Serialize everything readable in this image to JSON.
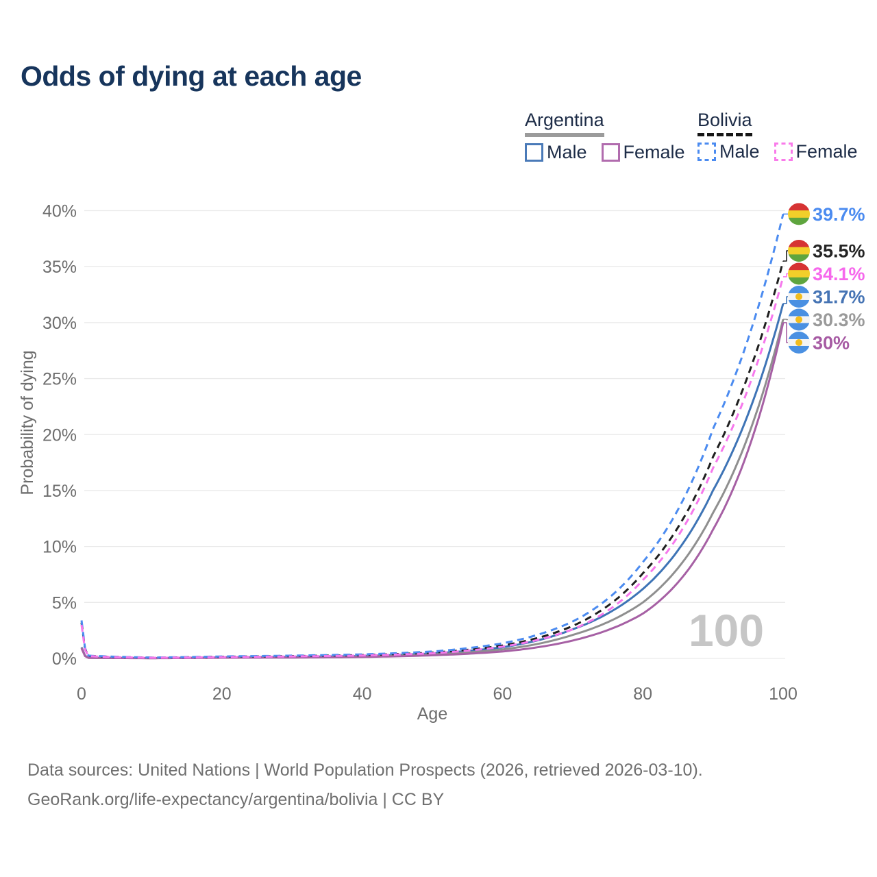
{
  "page": {
    "title": "Odds of dying at each age"
  },
  "legend": {
    "groups": [
      {
        "country": "Argentina",
        "line_style": "solid",
        "underline_color": "#9b9b9b",
        "items": [
          {
            "label": "Male",
            "color": "#4a7ab8"
          },
          {
            "label": "Female",
            "color": "#b16cae"
          }
        ]
      },
      {
        "country": "Bolivia",
        "line_style": "dashed",
        "underline_color": "#161616",
        "items": [
          {
            "label": "Male",
            "color": "#4b8bf0"
          },
          {
            "label": "Female",
            "color": "#f97bea"
          }
        ]
      }
    ]
  },
  "footer": {
    "line1": "Data sources: United Nations | World Population Prospects (2026, retrieved 2026-03-10).",
    "line2": "GeoRank.org/life-expectancy/argentina/bolivia | CC BY"
  },
  "chart_data": {
    "type": "line",
    "title": "Odds of dying at each age",
    "xlabel": "Age",
    "ylabel": "Probability of dying",
    "xlim": [
      0,
      100
    ],
    "ylim": [
      0,
      40
    ],
    "grid": "horizontal-only",
    "x_tick_values": [
      0,
      20,
      40,
      60,
      80,
      100
    ],
    "x_tick_labels": [
      "0",
      "20",
      "40",
      "60",
      "80",
      "100"
    ],
    "y_tick_values": [
      0,
      5,
      10,
      15,
      20,
      25,
      30,
      35,
      40
    ],
    "y_tick_labels": [
      "0%",
      "5%",
      "10%",
      "15%",
      "20%",
      "25%",
      "30%",
      "35%",
      "40%"
    ],
    "watermark_age": "100",
    "anchor_ages": [
      0,
      1,
      10,
      20,
      30,
      40,
      50,
      60,
      70,
      80,
      90,
      100
    ],
    "series": [
      {
        "id": "argentina-male",
        "country": "Argentina",
        "sex": "Male",
        "color": "#3e74b6",
        "dashed": false,
        "flag": "argentina",
        "end_label": "31.7%",
        "label_color": "#4674b4",
        "values_pct": [
          1.0,
          0.06,
          0.03,
          0.1,
          0.14,
          0.22,
          0.45,
          1.0,
          2.6,
          6.2,
          15,
          31.7
        ]
      },
      {
        "id": "argentina-both",
        "country": "Argentina",
        "sex": "Both sexes",
        "color": "#8f8f8f",
        "dashed": false,
        "flag": "argentina",
        "end_label": "30.3%",
        "label_color": "#9a9a9a",
        "values_pct": [
          0.95,
          0.055,
          0.025,
          0.08,
          0.11,
          0.17,
          0.36,
          0.8,
          2.1,
          5.0,
          13,
          30.3
        ]
      },
      {
        "id": "argentina-female",
        "country": "Argentina",
        "sex": "Female",
        "color": "#a660a4",
        "dashed": false,
        "flag": "argentina",
        "end_label": "30%",
        "label_color": "#a65aa3",
        "values_pct": [
          0.9,
          0.05,
          0.02,
          0.06,
          0.08,
          0.13,
          0.28,
          0.62,
          1.6,
          4.0,
          11.5,
          30
        ]
      },
      {
        "id": "bolivia-both",
        "country": "Bolivia",
        "sex": "Both sexes",
        "color": "#1f1f1f",
        "dashed": true,
        "flag": "bolivia",
        "end_label": "35.5%",
        "label_color": "#242424",
        "values_pct": [
          3.2,
          0.22,
          0.07,
          0.15,
          0.21,
          0.3,
          0.52,
          1.15,
          2.9,
          7.6,
          18,
          35.5
        ]
      },
      {
        "id": "bolivia-male",
        "country": "Bolivia",
        "sex": "Male",
        "color": "#4b8bf0",
        "dashed": true,
        "flag": "bolivia",
        "end_label": "39.7%",
        "label_color": "#4b8bf0",
        "values_pct": [
          3.4,
          0.25,
          0.08,
          0.18,
          0.25,
          0.36,
          0.62,
          1.35,
          3.3,
          8.6,
          20.5,
          39.7
        ]
      },
      {
        "id": "bolivia-female",
        "country": "Bolivia",
        "sex": "Female",
        "color": "#f678ec",
        "dashed": true,
        "flag": "bolivia",
        "end_label": "34.1%",
        "label_color": "#f668ec",
        "values_pct": [
          3.0,
          0.2,
          0.06,
          0.12,
          0.18,
          0.26,
          0.46,
          1.05,
          2.6,
          7.0,
          17,
          34.1
        ]
      }
    ],
    "flags": {
      "bolivia": {
        "stripes": [
          "#d63333",
          "#f2cf2a",
          "#5ea53e"
        ]
      },
      "argentina": {
        "stripes": [
          "#4a90e2",
          "#f4f4f4",
          "#4a90e2"
        ],
        "sun": "#f2bc1d"
      }
    }
  }
}
